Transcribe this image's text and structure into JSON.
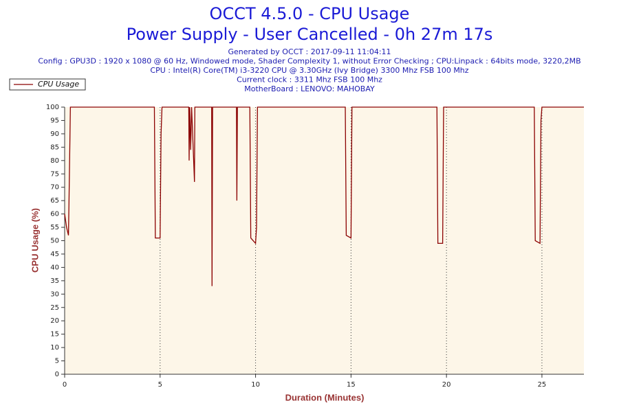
{
  "chart_data": {
    "type": "line",
    "title": "OCCT 4.5.0 - CPU Usage",
    "subtitle": "Power Supply - User Cancelled - 0h 27m 17s",
    "notes": [
      "Generated by OCCT : 2017-09-11 11:04:11",
      "Config : GPU3D : 1920 x 1080 @ 60 Hz, Windowed mode, Shader Complexity 1, without Error Checking ; CPU:Linpack : 64bits mode, 3220,2MB",
      "CPU : Intel(R) Core(TM) i3-3220 CPU @ 3.30GHz (Ivy Bridge) 3300 Mhz FSB 100 Mhz",
      "Current clock : 3311 Mhz FSB 100 Mhz",
      "MotherBoard : LENOVO: MAHOBAY"
    ],
    "x_label": "Duration (Minutes)",
    "y_label": "CPU Usage (%)",
    "x": [
      0,
      0.1,
      0.2,
      0.25,
      0.3,
      4.7,
      4.75,
      5.0,
      5.05,
      5.1,
      6.5,
      6.52,
      6.55,
      6.6,
      6.65,
      6.8,
      6.82,
      7.7,
      7.72,
      7.75,
      9.0,
      9.02,
      9.05,
      9.7,
      9.75,
      10.0,
      10.05,
      10.1,
      14.7,
      14.75,
      15.0,
      15.05,
      19.5,
      19.55,
      19.8,
      19.85,
      24.6,
      24.65,
      24.9,
      24.95,
      25.0,
      27.2
    ],
    "series": [
      {
        "name": "CPU Usage",
        "color": "#8b0000",
        "values": [
          60,
          55,
          52,
          75,
          100,
          100,
          51,
          51,
          90,
          100,
          100,
          80,
          100,
          84,
          100,
          72,
          100,
          100,
          33,
          100,
          100,
          65,
          100,
          100,
          51,
          49,
          55,
          100,
          100,
          52,
          51,
          100,
          100,
          49,
          49,
          100,
          100,
          50,
          49,
          95,
          100,
          100
        ]
      }
    ],
    "xlim": [
      0,
      27.2
    ],
    "ylim": [
      0,
      100
    ],
    "xticks": [
      0,
      5,
      10,
      15,
      20,
      25
    ],
    "yticks": [
      0,
      5,
      10,
      15,
      20,
      25,
      30,
      35,
      40,
      45,
      50,
      55,
      60,
      65,
      70,
      75,
      80,
      85,
      90,
      95,
      100
    ],
    "xgrid": true,
    "background": "#fdf6e8"
  }
}
